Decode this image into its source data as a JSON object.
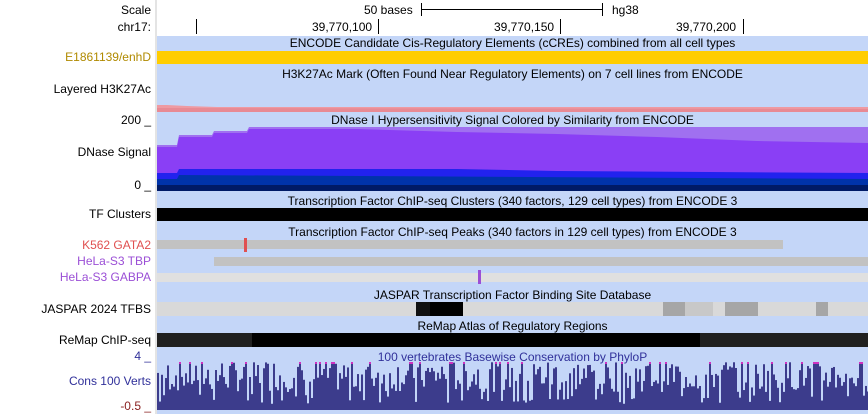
{
  "ruler": {
    "scale_label": "Scale",
    "scale_bar_text": "50 bases",
    "assembly": "hg38",
    "chrom_label": "chr17:",
    "positions": [
      "39,770,100",
      "39,770,150",
      "39,770,200"
    ]
  },
  "tracks": {
    "ccre": {
      "title": "ENCODE Candidate Cis-Regulatory Elements (cCREs) combined from all cell types",
      "item_label": "E1861139/enhD",
      "color": "#ffcd00"
    },
    "h3k27ac": {
      "title": "H3K27Ac Mark (Often Found Near Regulatory Elements) on 7 cell lines from ENCODE",
      "label": "Layered H3K27Ac"
    },
    "dnase": {
      "title": "DNase I Hypersensitivity Signal Colored by Similarity from ENCODE",
      "label": "DNase Signal",
      "ymax_label": "200 _",
      "ymin_label": "0 _"
    },
    "tf_clusters": {
      "title": "Transcription Factor ChIP-seq Clusters (340 factors, 129 cell types) from ENCODE 3",
      "label": "TF Clusters"
    },
    "tf_peaks": {
      "title": "Transcription Factor ChIP-seq Peaks (340 factors in 129 cell types) from ENCODE 3",
      "rows": [
        {
          "label": "K562 GATA2",
          "color": "#e05050"
        },
        {
          "label": "HeLa-S3 TBP",
          "color": "#9b4fd6"
        },
        {
          "label": "HeLa-S3 GABPA",
          "color": "#9b4fd6"
        }
      ]
    },
    "jaspar": {
      "title": "JASPAR Transcription Factor Binding Site Database",
      "label": "JASPAR 2024 TFBS"
    },
    "remap": {
      "title": "ReMap Atlas of Regulatory Regions",
      "label": "ReMap ChIP-seq"
    },
    "phylop": {
      "title": "100 vertebrates Basewise Conservation by PhyloP",
      "label": "Cons 100 Verts",
      "ymax_label": "4 _",
      "ymin_label": "-0.5 _",
      "label_color": "#30309a"
    }
  }
}
